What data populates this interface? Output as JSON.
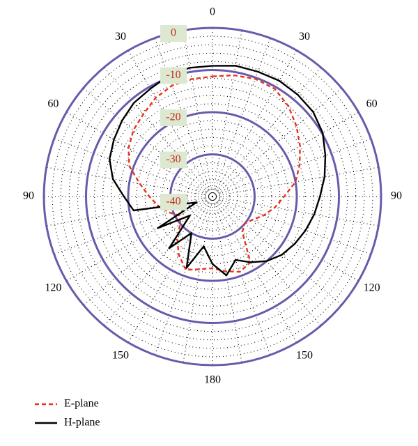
{
  "chart_data": {
    "type": "polar",
    "theta_zero": "top",
    "theta_direction": "clockwise",
    "x": [
      0,
      10,
      20,
      30,
      40,
      50,
      60,
      70,
      80,
      90,
      100,
      110,
      120,
      130,
      140,
      150,
      160,
      170,
      180,
      190,
      200,
      210,
      220,
      230,
      240,
      250,
      260,
      270,
      280,
      290,
      300,
      310,
      320,
      330,
      340,
      350
    ],
    "series": [
      {
        "name": "E-plane",
        "color": "#e8321e",
        "linestyle": "dashed",
        "values": [
          -11.5,
          -10.8,
          -10.3,
          -10.5,
          -12,
          -14,
          -16,
          -18,
          -20,
          -23,
          -25,
          -27,
          -29,
          -30,
          -29,
          -22,
          -21,
          -22,
          -23,
          -22.5,
          -21.5,
          -24,
          -27,
          -30,
          -31,
          -29,
          -27,
          -25,
          -22.5,
          -19,
          -17,
          -15.5,
          -14.5,
          -13,
          -12,
          -11.7
        ]
      },
      {
        "name": "H-plane",
        "color": "#000000",
        "linestyle": "solid",
        "values": [
          -9,
          -8.5,
          -8.5,
          -8.3,
          -8.5,
          -8.8,
          -9.8,
          -11.5,
          -13,
          -14.5,
          -15.5,
          -16.5,
          -17.5,
          -18.5,
          -20,
          -22,
          -24,
          -21,
          -24,
          -28,
          -22,
          -30,
          -24,
          -33,
          -25,
          -36,
          -21,
          -19,
          -16,
          -14,
          -13,
          -12,
          -11,
          -10.5,
          -9.5,
          -9
        ]
      }
    ],
    "rlim": [
      -40,
      0
    ],
    "rticks": [
      0,
      -10,
      -20,
      -30,
      -40
    ],
    "rminorticks": [
      -38,
      -36,
      -34,
      -32,
      -28,
      -26,
      -24,
      -22,
      -18,
      -16,
      -14,
      -12,
      -8,
      -6,
      -4,
      -2
    ],
    "thetaticks": [
      0,
      30,
      60,
      90,
      120,
      150,
      180,
      {
        "value": 210,
        "label": "150"
      },
      {
        "value": 240,
        "label": "120"
      },
      {
        "value": 270,
        "label": "90"
      },
      {
        "value": 300,
        "label": "60"
      },
      {
        "value": 330,
        "label": "30"
      }
    ],
    "thetaminorticks": [
      0,
      10,
      20,
      30,
      40,
      50,
      60,
      70,
      80,
      90,
      100,
      110,
      120,
      130,
      140,
      150,
      160,
      170,
      180,
      190,
      200,
      210,
      220,
      230,
      240,
      250,
      260,
      270,
      280,
      290,
      300,
      310,
      320,
      330,
      340,
      350
    ],
    "ring_color": "#6a5aab",
    "grid": true
  }
}
